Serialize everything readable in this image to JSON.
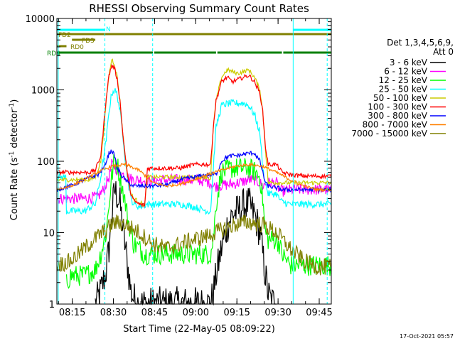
{
  "chart_data": {
    "type": "line",
    "title": "RHESSI Observing Summary Count Rates",
    "xlabel": "Start Time (22-May-05 08:09:22)",
    "ylabel_main": "Count Rate (s",
    "ylabel_sup1": "-1",
    "ylabel_mid": " detector",
    "ylabel_sup2": "-1",
    "ylabel_end": ")",
    "yscale": "log",
    "ylim": [
      1,
      10000
    ],
    "xlim_minutes": [
      0,
      100
    ],
    "x_ticks": [
      {
        "min": 5.6,
        "label": "08:15"
      },
      {
        "min": 20.6,
        "label": "08:30"
      },
      {
        "min": 35.6,
        "label": "08:45"
      },
      {
        "min": 50.6,
        "label": "09:00"
      },
      {
        "min": 65.6,
        "label": "09:15"
      },
      {
        "min": 80.6,
        "label": "09:30"
      },
      {
        "min": 95.6,
        "label": "09:45"
      }
    ],
    "y_ticks": [
      {
        "value": 1,
        "label": "1"
      },
      {
        "value": 10,
        "label": "10"
      },
      {
        "value": 100,
        "label": "100"
      },
      {
        "value": 1000,
        "label": "1000"
      },
      {
        "value": 10000,
        "label": "10000"
      }
    ],
    "legend_header1": "Det 1,3,4,5,6,9,",
    "legend_header2": "Att 0",
    "legend_position": "right",
    "series": [
      {
        "name": "3 - 6 keV",
        "color": "#000000",
        "x": [
          14,
          16,
          18,
          19,
          20,
          21,
          22,
          23,
          24,
          25,
          26,
          27,
          28,
          29,
          30,
          56,
          57,
          58,
          60,
          62,
          63,
          64,
          66,
          68,
          70,
          72,
          74,
          75,
          76,
          77,
          78,
          80
        ],
        "y": [
          1,
          1.5,
          3,
          6,
          17,
          40,
          33,
          25,
          12,
          6,
          3,
          1.5,
          1.2,
          1.05,
          1,
          1,
          1.4,
          2.5,
          6,
          12,
          15,
          18,
          20,
          24,
          25,
          18,
          10,
          5,
          2.5,
          1.4,
          1.1,
          1
        ]
      },
      {
        "name": "6 - 12 keV",
        "color": "#ff00ff",
        "x": [
          0,
          5,
          10,
          15,
          17,
          19,
          20,
          21,
          22,
          23,
          24,
          25,
          26,
          27,
          28,
          30,
          35,
          40,
          45,
          50,
          55,
          56,
          57,
          58,
          60,
          62,
          64,
          66,
          68,
          70,
          72,
          74,
          75,
          76,
          77,
          80,
          81,
          82,
          85,
          90,
          95,
          100
        ],
        "y": [
          30,
          30,
          30,
          32,
          40,
          60,
          90,
          85,
          75,
          70,
          65,
          62,
          60,
          57,
          55,
          55,
          53,
          55,
          55,
          55,
          52,
          50,
          45,
          45,
          46,
          47,
          48,
          50,
          52,
          55,
          55,
          50,
          45,
          48,
          50,
          50,
          40,
          38,
          40,
          40,
          40,
          40
        ]
      },
      {
        "name": "12 - 25 keV",
        "color": "#00ff00",
        "x": [
          3.5,
          5,
          10,
          14,
          16,
          18,
          19,
          20,
          21,
          22,
          23,
          24,
          25,
          26,
          27,
          28,
          30,
          32,
          34,
          35,
          40,
          45,
          50,
          55,
          56,
          57,
          58,
          60,
          62,
          64,
          66,
          68,
          70,
          72,
          74,
          75,
          76,
          77,
          80,
          81,
          82,
          85,
          90,
          95,
          100
        ],
        "y": [
          2,
          2.5,
          2.5,
          3,
          5,
          10,
          25,
          60,
          110,
          90,
          60,
          40,
          25,
          15,
          10,
          7,
          6,
          5,
          5,
          5,
          5,
          5,
          5,
          5,
          5,
          8,
          25,
          70,
          75,
          80,
          80,
          80,
          80,
          72,
          60,
          30,
          10,
          8,
          8,
          7,
          5,
          3.5,
          3.5,
          3.5,
          3.5
        ]
      },
      {
        "name": "25 - 50 keV",
        "color": "#00ffff",
        "x": [
          0,
          3.4,
          3.5,
          5,
          10,
          14,
          16,
          18,
          19,
          20,
          21,
          22,
          23,
          24,
          25,
          26,
          27,
          28,
          30,
          33,
          34,
          35,
          40,
          45,
          50,
          55,
          56,
          57,
          58,
          60,
          62,
          64,
          66,
          68,
          70,
          72,
          74,
          75,
          76,
          77,
          80,
          81,
          82,
          85,
          90,
          95,
          100
        ],
        "y": [
          60,
          60,
          20,
          20,
          20,
          25,
          60,
          200,
          500,
          900,
          1000,
          850,
          500,
          250,
          100,
          50,
          30,
          25,
          23,
          25,
          25,
          25,
          25,
          25,
          23,
          20,
          20,
          80,
          300,
          600,
          640,
          650,
          650,
          650,
          600,
          450,
          250,
          80,
          50,
          35,
          35,
          30,
          27,
          25,
          25,
          25,
          25
        ]
      },
      {
        "name": "50 - 100 keV",
        "color": "#cccc00",
        "x": [
          0,
          5,
          10,
          12,
          14,
          16,
          17,
          18,
          19,
          20,
          21,
          22,
          23,
          24,
          25,
          26,
          27,
          28,
          30,
          32,
          33,
          34,
          35,
          40,
          45,
          50,
          52,
          54,
          55,
          56,
          57,
          58,
          60,
          62,
          64,
          66,
          68,
          70,
          72,
          74,
          75,
          76,
          77,
          80,
          81,
          82,
          85,
          90,
          95,
          100
        ],
        "y": [
          55,
          55,
          55,
          55,
          60,
          100,
          250,
          700,
          1600,
          2700,
          2300,
          1500,
          700,
          250,
          110,
          55,
          35,
          30,
          27,
          24,
          60,
          60,
          60,
          60,
          60,
          60,
          60,
          60,
          60,
          55,
          300,
          700,
          1500,
          1900,
          1800,
          1700,
          1800,
          1900,
          1500,
          1000,
          500,
          150,
          50,
          50,
          50,
          50,
          50,
          50,
          50,
          50
        ]
      },
      {
        "name": "100 - 300 keV",
        "color": "#ff0000",
        "x": [
          0,
          5,
          10,
          12,
          14,
          16,
          17,
          18,
          19,
          20,
          21,
          22,
          23,
          24,
          25,
          26,
          27,
          28,
          30,
          32,
          33,
          34,
          35,
          40,
          45,
          50,
          52,
          54,
          55,
          56,
          57,
          58,
          60,
          62,
          64,
          66,
          68,
          70,
          72,
          74,
          75,
          76,
          77,
          80,
          81,
          82,
          85,
          90,
          95,
          100
        ],
        "y": [
          70,
          70,
          70,
          70,
          75,
          120,
          300,
          800,
          1600,
          2200,
          2000,
          1400,
          700,
          250,
          110,
          55,
          35,
          28,
          25,
          24,
          80,
          80,
          80,
          80,
          80,
          90,
          90,
          90,
          90,
          90,
          300,
          700,
          1300,
          1500,
          1300,
          1400,
          1500,
          1600,
          1300,
          900,
          500,
          160,
          90,
          90,
          80,
          70,
          65,
          62,
          62,
          62
        ]
      },
      {
        "name": "300 - 800 keV",
        "color": "#0000ff",
        "x": [
          0,
          5,
          10,
          15,
          17,
          18,
          19,
          20,
          21,
          22,
          24,
          26,
          28,
          30,
          35,
          40,
          45,
          50,
          55,
          58,
          60,
          62,
          64,
          66,
          68,
          70,
          72,
          74,
          75,
          76,
          77,
          80,
          81,
          82,
          85,
          90,
          95,
          100
        ],
        "y": [
          40,
          45,
          55,
          65,
          80,
          100,
          130,
          140,
          120,
          80,
          60,
          50,
          45,
          45,
          45,
          47,
          55,
          60,
          65,
          65,
          100,
          115,
          120,
          120,
          125,
          130,
          130,
          100,
          70,
          50,
          45,
          42,
          42,
          40,
          40,
          40,
          40,
          40
        ]
      },
      {
        "name": "800 - 7000 keV",
        "color": "#ff8000",
        "x": [
          0,
          5,
          10,
          15,
          20,
          25,
          30,
          35,
          40,
          45,
          50,
          55,
          60,
          65,
          70,
          75,
          80,
          85,
          90,
          95,
          100
        ],
        "y": [
          40,
          45,
          55,
          70,
          85,
          90,
          75,
          50,
          45,
          48,
          55,
          65,
          75,
          85,
          90,
          85,
          70,
          55,
          45,
          40,
          40
        ]
      },
      {
        "name": "7000 - 15000 keV",
        "color": "#808000",
        "x": [
          0,
          5,
          10,
          15,
          18,
          20,
          22,
          25,
          30,
          35,
          40,
          45,
          50,
          55,
          60,
          65,
          70,
          75,
          80,
          85,
          90,
          95,
          100
        ],
        "y": [
          3.5,
          4,
          6,
          9,
          11,
          13,
          14,
          13,
          10,
          7,
          6,
          7,
          8,
          9,
          11,
          13,
          14,
          13,
          10,
          6,
          4,
          3.3,
          3.3
        ]
      }
    ],
    "flags": [
      {
        "name": "N",
        "color": "#00ffff",
        "segments": [
          [
            0,
            17.5
          ],
          [
            86,
            100
          ]
        ]
      },
      {
        "name": "FD2",
        "color": "#808000",
        "segments": [
          [
            0,
            100
          ]
        ]
      },
      {
        "name": "FD3",
        "color": "#808000",
        "segments": [
          [
            5.5,
            14
          ]
        ]
      },
      {
        "name": "RD0",
        "color": "#808000",
        "segments": [
          [
            0,
            3.5
          ]
        ]
      },
      {
        "name": "RD4",
        "color": "#008000",
        "segments": [
          [
            0,
            35
          ],
          [
            35.5,
            58
          ],
          [
            58.5,
            82
          ],
          [
            82.5,
            100
          ]
        ]
      }
    ],
    "vlines_solid": [
      0.5,
      86.1
    ],
    "vlines_dashed": [
      17.5,
      34.9,
      98.5
    ]
  },
  "timestamp": "17-Oct-2021 05:57"
}
